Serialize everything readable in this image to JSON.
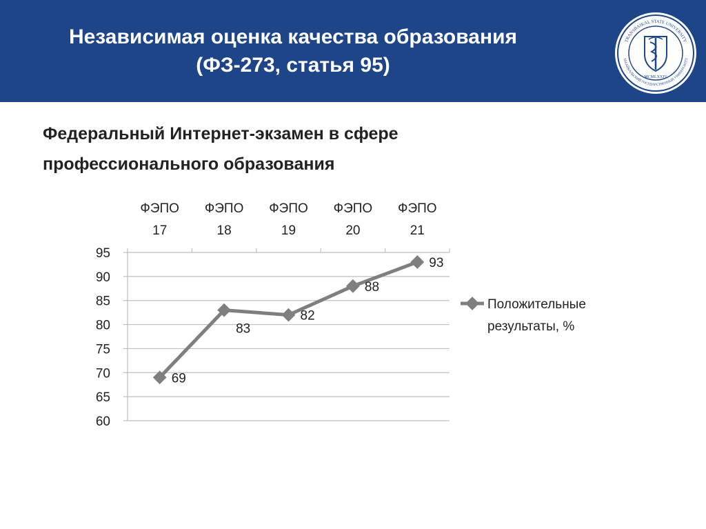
{
  "header": {
    "title_line1": "Независимая оценка качества образования",
    "title_line2": "(ФЗ-273, статья 95)",
    "background_color": "#1f4589",
    "logo": {
      "top_text": "TRANSBAIKAL STATE UNIVERSITY",
      "bottom_text": "ЗАБАЙКАЛЬСКИЙ ГОСУДАРСТВЕННЫЙ УНИВЕРСИТЕТ",
      "year": "MCMLXXIV"
    }
  },
  "subtitle": {
    "line1": "Федеральный Интернет-экзамен в сфере",
    "line2": "профессионального образования"
  },
  "chart_data": {
    "type": "line",
    "categories": [
      [
        "ФЭПО",
        "17"
      ],
      [
        "ФЭПО",
        "18"
      ],
      [
        "ФЭПО",
        "19"
      ],
      [
        "ФЭПО",
        "20"
      ],
      [
        "ФЭПО",
        "21"
      ]
    ],
    "series": [
      {
        "name": "Положительные результаты, %",
        "values": [
          69,
          83,
          82,
          88,
          93
        ],
        "color": "#7f7f7f"
      }
    ],
    "data_labels": [
      "69",
      "83",
      "82",
      "88",
      "93"
    ],
    "yticks": [
      "95",
      "90",
      "85",
      "80",
      "75",
      "70",
      "65",
      "60"
    ],
    "ylim": [
      60,
      95
    ],
    "x_axis_position": "top",
    "grid": true,
    "legend_position": "right",
    "legend_lines": [
      "Положительные",
      "результаты, %"
    ]
  }
}
